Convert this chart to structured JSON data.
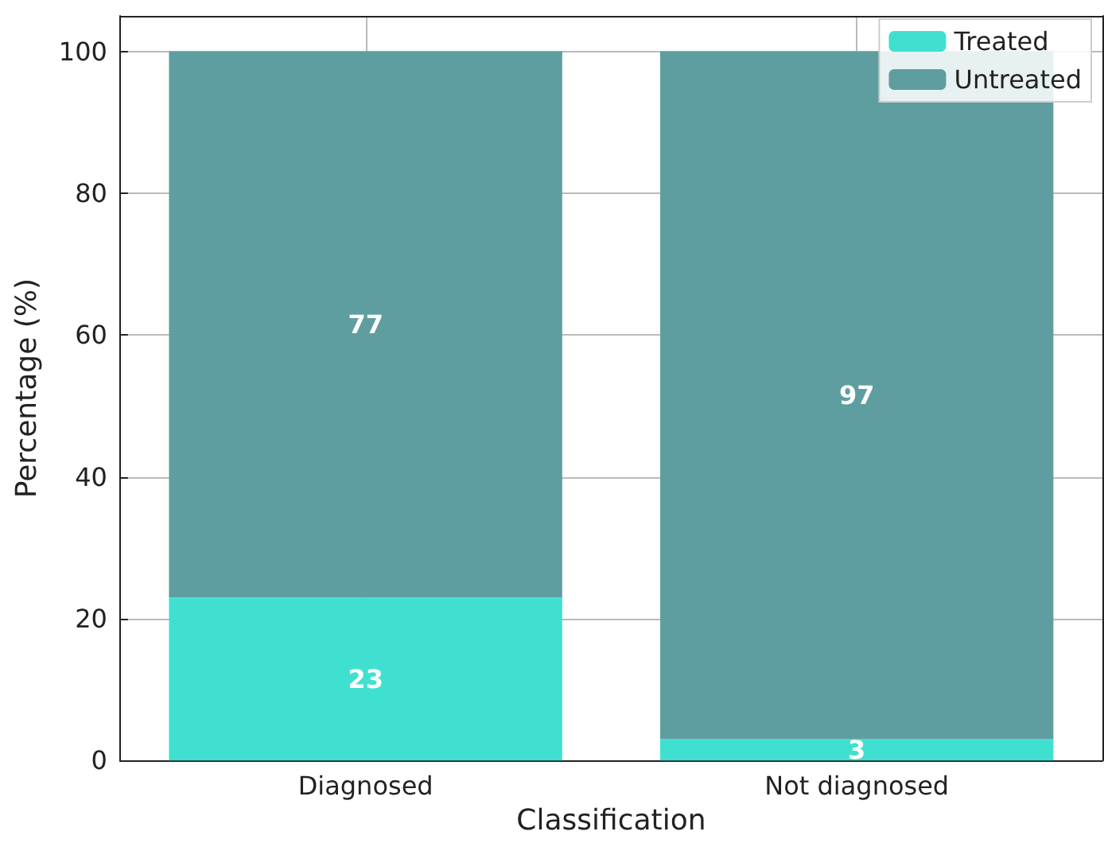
{
  "chart_data": {
    "type": "bar",
    "stacked": true,
    "xlabel": "Classification",
    "ylabel": "Percentage (%)",
    "categories": [
      "Diagnosed",
      "Not diagnosed"
    ],
    "series": [
      {
        "name": "Treated",
        "color": "#40e0d0",
        "values": [
          23,
          3
        ]
      },
      {
        "name": "Untreated",
        "color": "#5f9ea0",
        "values": [
          77,
          97
        ]
      }
    ],
    "ylim": [
      0,
      105
    ],
    "yticks": [
      0,
      20,
      40,
      60,
      80,
      100
    ],
    "grid": true,
    "legend": "top right",
    "data_labels": true
  }
}
